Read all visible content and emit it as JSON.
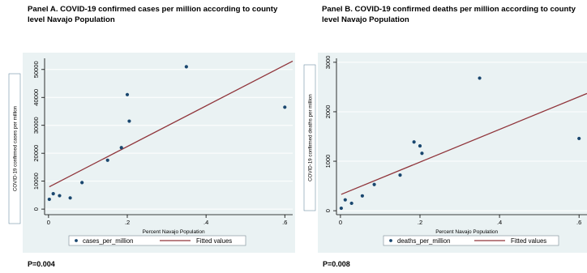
{
  "panels": {
    "a": {
      "title": "Panel A. COVID-19  confirmed cases per million according to county level Navajo Population",
      "p_value": "P=0.004"
    },
    "b": {
      "title": "Panel B. COVID-19  confirmed deaths per million according to county level Navajo Population",
      "p_value": "P=0.008"
    }
  },
  "colors": {
    "background": "#eaf2f3",
    "marker": "#1a476f",
    "fit_line": "#90353b",
    "axis": "#000000",
    "grid": "#ffffff"
  },
  "chart_data": [
    {
      "type": "scatter",
      "xlabel": "Percent Navajo Population",
      "ylabel": "COVID-19  confirmed cases per million",
      "xlim": [
        -0.01,
        0.62
      ],
      "ylim": [
        -2000,
        54000
      ],
      "x_ticks": [
        0,
        0.2,
        0.4,
        0.6
      ],
      "x_tick_labels": [
        "0",
        ".2",
        ".4",
        ".6"
      ],
      "y_ticks": [
        0,
        10000,
        20000,
        30000,
        40000,
        50000
      ],
      "y_tick_labels": [
        "0",
        "10000",
        "20000",
        "30000",
        "40000",
        "50000"
      ],
      "grid": true,
      "legend_position": "bottom",
      "series": [
        {
          "name": "cases_per_million",
          "kind": "scatter",
          "x": [
            0.002,
            0.012,
            0.028,
            0.055,
            0.085,
            0.15,
            0.185,
            0.2,
            0.205,
            0.35,
            0.6
          ],
          "y": [
            3500,
            5500,
            4800,
            4000,
            9500,
            17500,
            22000,
            41000,
            31500,
            51000,
            36500
          ]
        },
        {
          "name": "Fitted values",
          "kind": "line",
          "x": [
            0.002,
            0.62
          ],
          "y": [
            8000,
            53000
          ]
        }
      ]
    },
    {
      "type": "scatter",
      "xlabel": "Percent Navajo Population",
      "ylabel": "COVID-19  confirmed deaths per million",
      "xlim": [
        -0.01,
        0.62
      ],
      "ylim": [
        -80,
        3080
      ],
      "x_ticks": [
        0,
        0.2,
        0.4,
        0.6
      ],
      "x_tick_labels": [
        "0",
        ".2",
        ".4",
        ".6"
      ],
      "y_ticks": [
        0,
        1000,
        2000,
        3000
      ],
      "y_tick_labels": [
        "0",
        "1000",
        "2000",
        "3000"
      ],
      "grid": true,
      "legend_position": "bottom",
      "series": [
        {
          "name": "deaths_per_million",
          "kind": "scatter",
          "x": [
            0.002,
            0.012,
            0.028,
            0.055,
            0.085,
            0.15,
            0.185,
            0.2,
            0.205,
            0.35,
            0.6
          ],
          "y": [
            50,
            220,
            150,
            300,
            530,
            720,
            1390,
            1310,
            1160,
            2680,
            1460
          ]
        },
        {
          "name": "Fitted values",
          "kind": "line",
          "x": [
            0.002,
            0.62
          ],
          "y": [
            330,
            2370
          ]
        }
      ]
    }
  ]
}
